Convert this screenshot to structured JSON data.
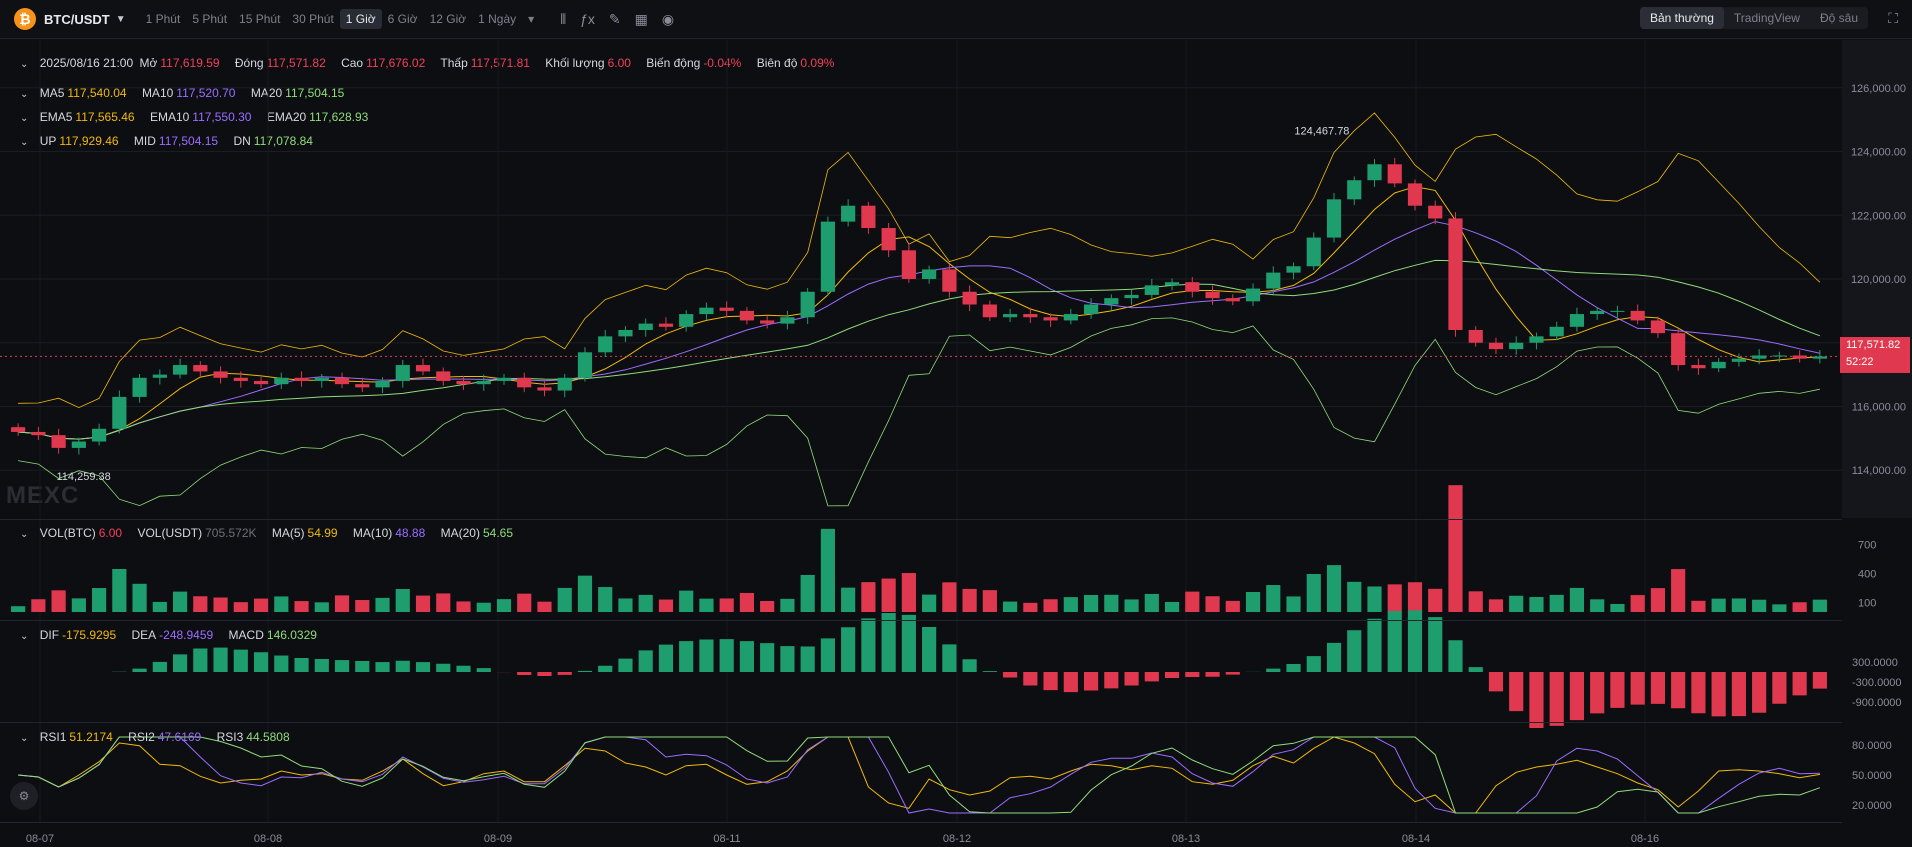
{
  "header": {
    "symbol": "BTC/USDT",
    "timeframes": [
      "1 Phút",
      "5 Phút",
      "15 Phút",
      "30 Phút",
      "1 Giờ",
      "6 Giờ",
      "12 Giờ",
      "1 Ngày"
    ],
    "active_timeframe": "1 Giờ",
    "views": [
      "Bản thường",
      "TradingView",
      "Độ sâu"
    ],
    "active_view": "Bản thường"
  },
  "ohlc": {
    "date": "2025/08/16 21:00",
    "open_label": "Mở",
    "open": "117,619.59",
    "close_label": "Đóng",
    "close": "117,571.82",
    "high_label": "Cao",
    "high": "117,676.02",
    "low_label": "Thấp",
    "low": "117,571.81",
    "volume_label": "Khối lượng",
    "volume": "6.00",
    "change_label": "Biến động",
    "change": "-0.04%",
    "amplitude_label": "Biên độ",
    "amplitude": "0.09%"
  },
  "ma": {
    "ma5_label": "MA5",
    "ma5": "117,540.04",
    "ma10_label": "MA10",
    "ma10": "117,520.70",
    "ma20_label": "MA20",
    "ma20": "117,504.15"
  },
  "ema": {
    "ema5_label": "EMA5",
    "ema5": "117,565.46",
    "ema10_label": "EMA10",
    "ema10": "117,550.30",
    "ema20_label": "EMA20",
    "ema20": "117,628.93"
  },
  "boll": {
    "up_label": "UP",
    "up": "117,929.46",
    "mid_label": "MID",
    "mid": "117,504.15",
    "dn_label": "DN",
    "dn": "117,078.84"
  },
  "vol": {
    "btc_label": "VOL(BTC)",
    "btc": "6.00",
    "usdt_label": "VOL(USDT)",
    "usdt": "705.572K",
    "ma5_label": "MA(5)",
    "ma5": "54.99",
    "ma10_label": "MA(10)",
    "ma10": "48.88",
    "ma20_label": "MA(20)",
    "ma20": "54.65"
  },
  "macd": {
    "dif_label": "DIF",
    "dif": "-175.9295",
    "dea_label": "DEA",
    "dea": "-248.9459",
    "macd_label": "MACD",
    "macd": "146.0329"
  },
  "rsi": {
    "rsi1_label": "RSI1",
    "rsi1": "51.2174",
    "rsi2_label": "RSI2",
    "rsi2": "47.6169",
    "rsi3_label": "RSI3",
    "rsi3": "44.5808"
  },
  "price_axis": [
    "126,000.00",
    "124,000.00",
    "122,000.00",
    "120,000.00",
    "118,000.00",
    "116,000.00",
    "114,000.00"
  ],
  "current_price": {
    "value": "117,571.82",
    "countdown": "52:22"
  },
  "vol_axis": [
    "700",
    "400",
    "100"
  ],
  "macd_axis": [
    "300.0000",
    "-300.0000",
    "-900.0000"
  ],
  "rsi_axis": [
    "80.0000",
    "50.0000",
    "20.0000"
  ],
  "date_axis": [
    "08-07",
    "08-08",
    "08-09",
    "08-11",
    "08-12",
    "08-13",
    "08-14",
    "08-16"
  ],
  "annotations": {
    "high": "124,467.78",
    "low": "114,259.38"
  },
  "watermark": "MEXC",
  "colors": {
    "up": "#1e9e6e",
    "down": "#e0384e",
    "ma5": "#f0b90b",
    "ma10": "#9b6dff",
    "ma20": "#8fdc7a",
    "bg": "#0d0e12"
  },
  "chart_data": {
    "type": "candlestick",
    "title": "BTC/USDT 1 Giờ",
    "ylim": [
      112500,
      127500
    ],
    "close_series_approx": [
      115200,
      115100,
      114700,
      114900,
      115300,
      116300,
      116900,
      117000,
      117300,
      117100,
      116900,
      116800,
      116700,
      116900,
      116800,
      116900,
      116700,
      116600,
      116800,
      117300,
      117100,
      116800,
      116700,
      116800,
      116900,
      116600,
      116500,
      116900,
      117700,
      118200,
      118400,
      118600,
      118500,
      118900,
      119100,
      119000,
      118700,
      118600,
      118800,
      119600,
      121800,
      122300,
      121600,
      120900,
      120000,
      120300,
      119600,
      119200,
      118800,
      118900,
      118800,
      118700,
      118900,
      119200,
      119400,
      119500,
      119800,
      119900,
      119600,
      119400,
      119300,
      119700,
      120200,
      120400,
      121300,
      122500,
      123100,
      123600,
      123000,
      122300,
      121900,
      118400,
      118000,
      117800,
      118000,
      118200,
      118500,
      118900,
      119000,
      119000,
      118700,
      118300,
      117300,
      117200,
      117400,
      117500,
      117600,
      117600,
      117500,
      117571
    ]
  }
}
